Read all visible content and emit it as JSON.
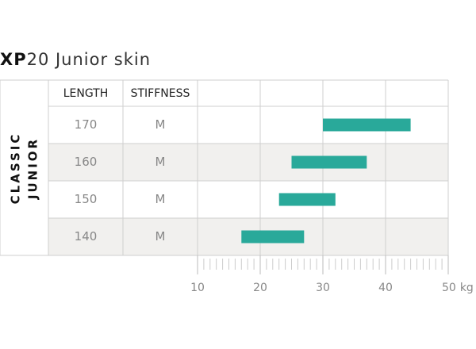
{
  "chart_data": {
    "type": "range_bar",
    "title_bold": "XP",
    "title": "20 Junior skin",
    "group_label": [
      "CLASSIC",
      "JUNIOR"
    ],
    "columns": [
      "LENGTH",
      "STIFFNESS"
    ],
    "categories": [
      "170",
      "160",
      "150",
      "140"
    ],
    "stiffness": [
      "M",
      "M",
      "M",
      "M"
    ],
    "series": [
      {
        "color": "#29a99a",
        "start": [
          30,
          25,
          23,
          17
        ],
        "end": [
          44,
          37,
          32,
          27
        ]
      }
    ],
    "xlim": [
      10,
      50
    ],
    "xticks": [
      10,
      20,
      30,
      40,
      50
    ],
    "xticks_minor": [
      11,
      12,
      13,
      14,
      15,
      16,
      17,
      18,
      19,
      21,
      22,
      23,
      24,
      25,
      26,
      27,
      28,
      29,
      31,
      32,
      33,
      34,
      35,
      36,
      37,
      38,
      39,
      41,
      42,
      43,
      44,
      45,
      46,
      47,
      48,
      49
    ],
    "x_unit": "kg",
    "grid": true
  }
}
